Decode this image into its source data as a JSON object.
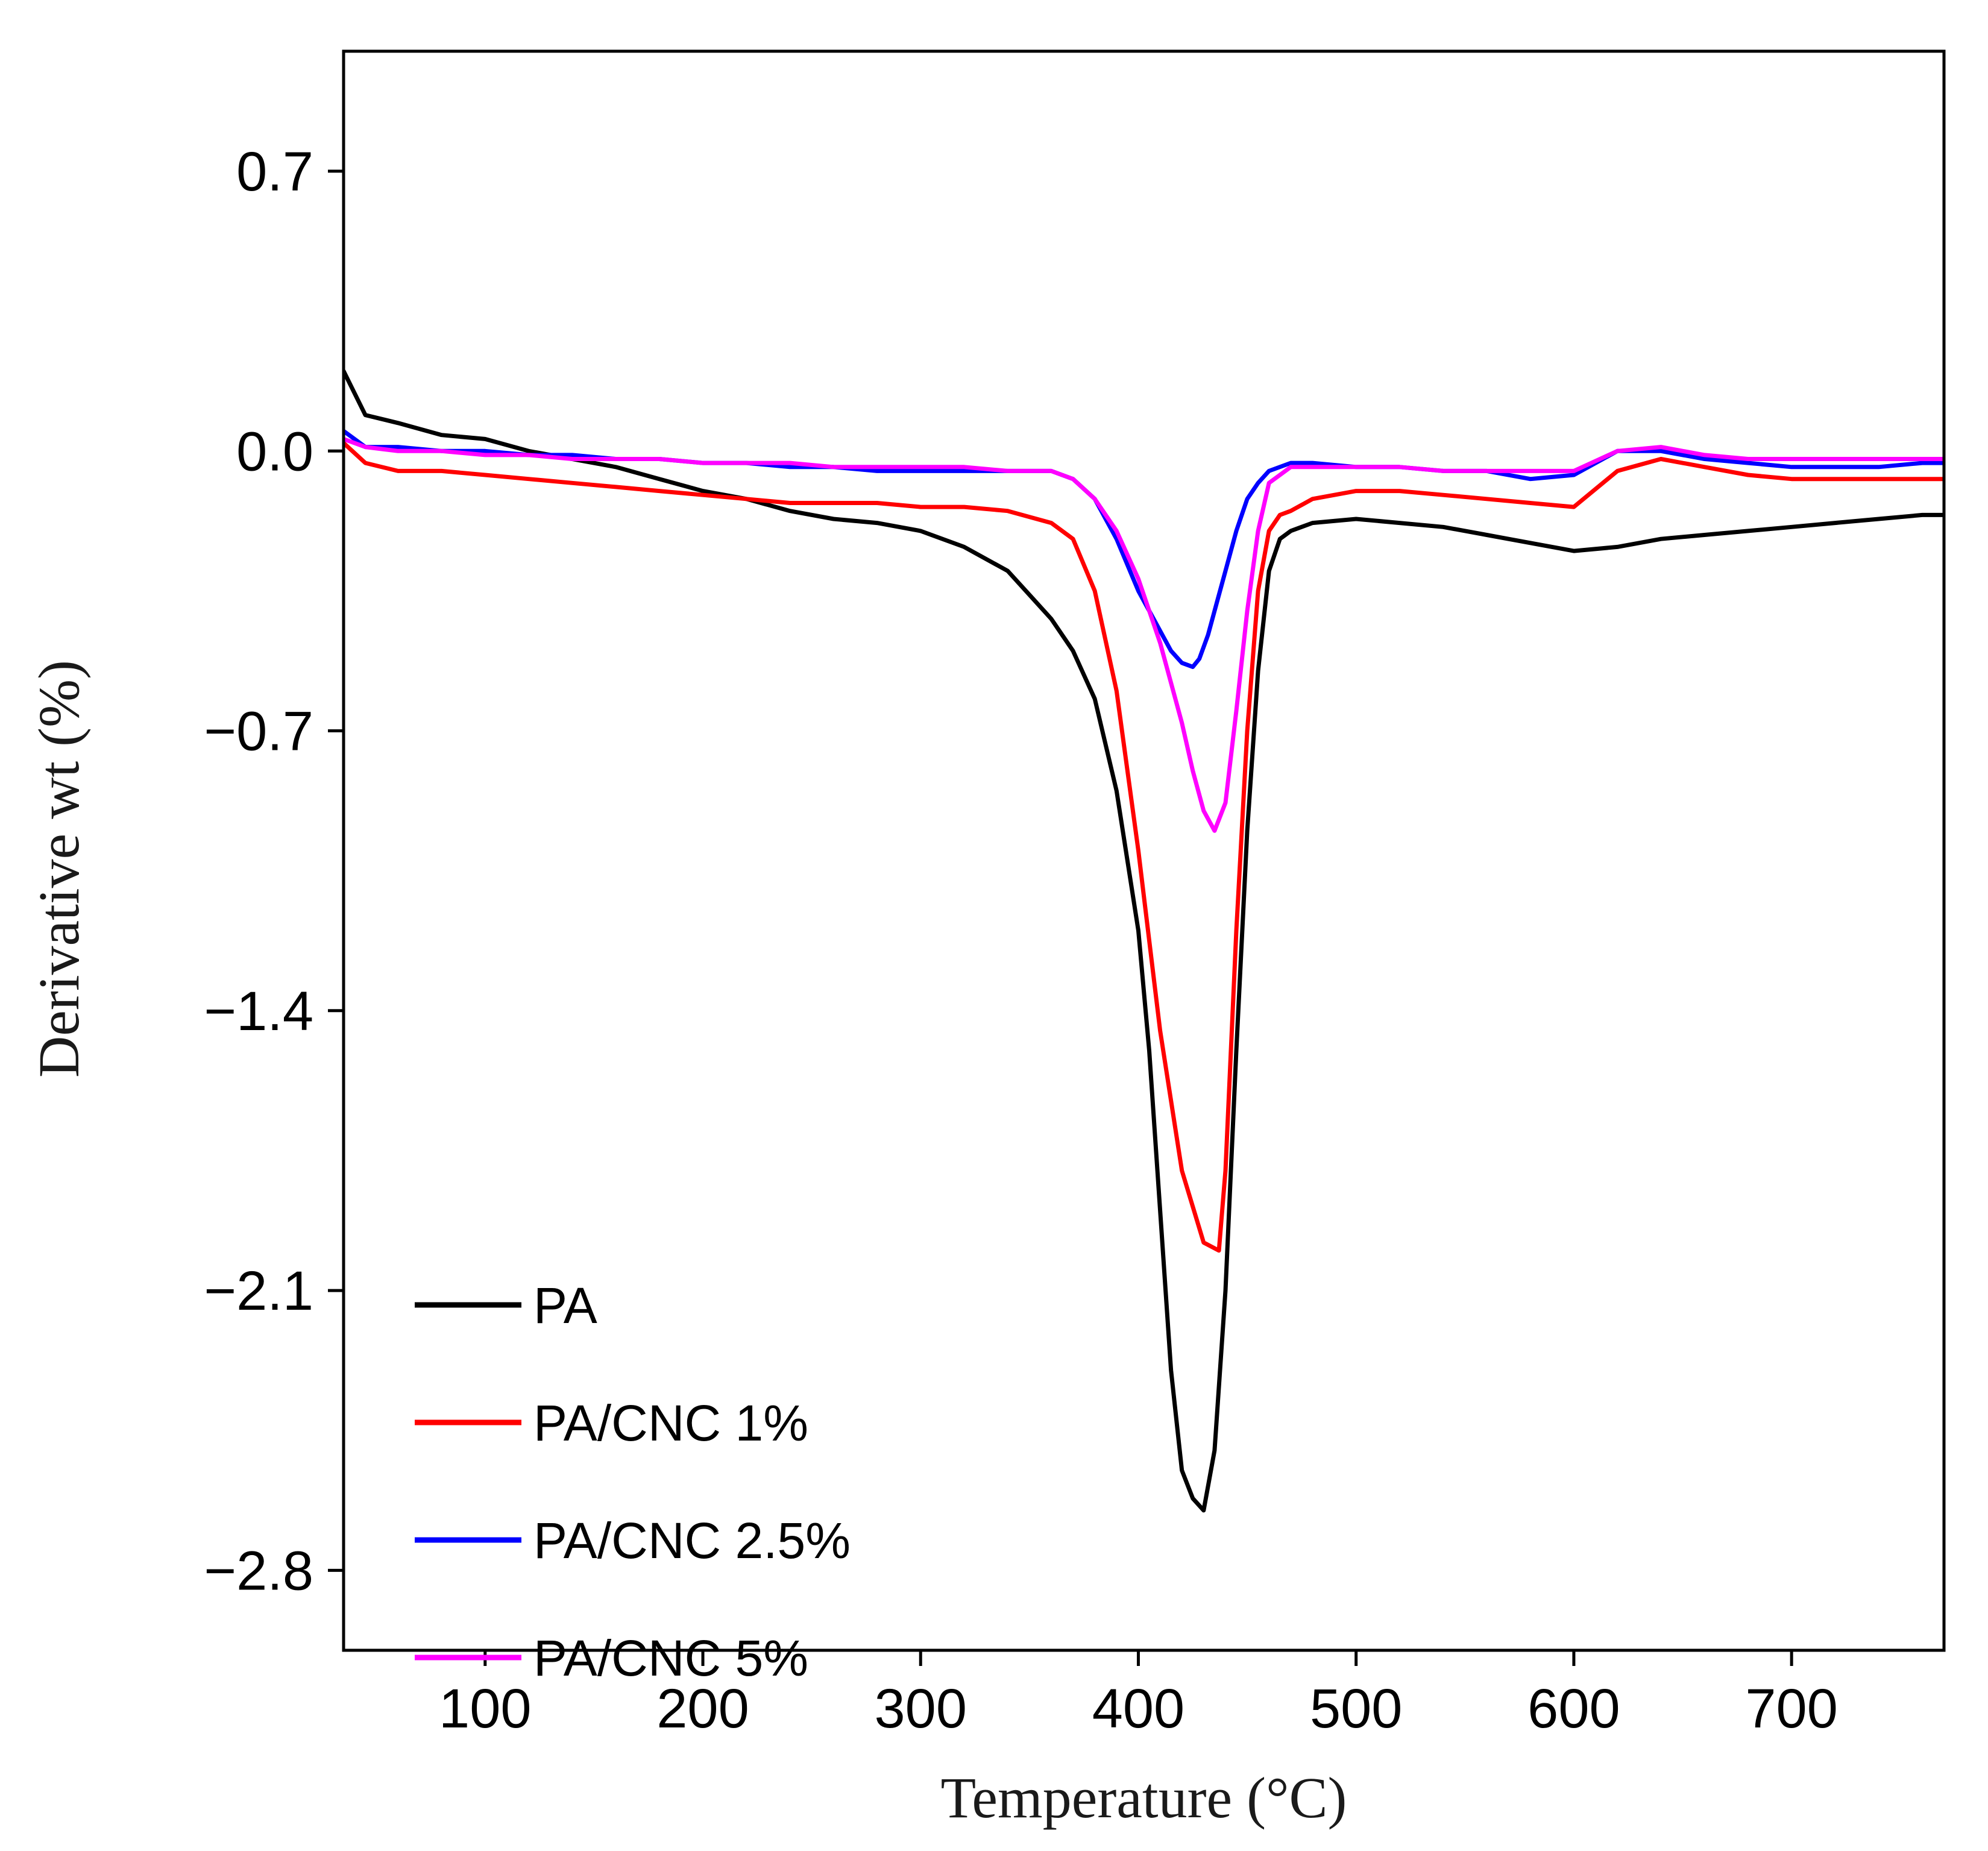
{
  "chart_data": {
    "type": "line",
    "title": "",
    "xlabel": "Temperature (°C)",
    "ylabel": "Derivative wt (%)",
    "xlim": [
      35,
      770
    ],
    "ylim": [
      -3.0,
      1.0
    ],
    "xticks": [
      100,
      200,
      300,
      400,
      500,
      600,
      700
    ],
    "xtick_labels": [
      "100",
      "200",
      "300",
      "400",
      "500",
      "600",
      "700"
    ],
    "yticks": [
      0.7,
      0.0,
      -0.7,
      -1.4,
      -2.1,
      -2.8
    ],
    "ytick_labels": [
      "0.7",
      "0.0",
      "−0.7",
      "−1.4",
      "−2.1",
      "−2.8"
    ],
    "legend_position": "bottom-left",
    "grid": false,
    "series": [
      {
        "name": "PA",
        "color": "#000000",
        "x": [
          35,
          45,
          60,
          80,
          100,
          120,
          140,
          160,
          180,
          200,
          220,
          240,
          260,
          280,
          300,
          320,
          340,
          350,
          360,
          370,
          380,
          390,
          400,
          405,
          410,
          415,
          420,
          425,
          430,
          435,
          440,
          445,
          450,
          455,
          460,
          465,
          470,
          480,
          500,
          520,
          540,
          560,
          580,
          600,
          620,
          640,
          660,
          680,
          700,
          720,
          740,
          760,
          770
        ],
        "y": [
          0.2,
          0.09,
          0.07,
          0.04,
          0.03,
          0.0,
          -0.02,
          -0.04,
          -0.07,
          -0.1,
          -0.12,
          -0.15,
          -0.17,
          -0.18,
          -0.2,
          -0.24,
          -0.3,
          -0.36,
          -0.42,
          -0.5,
          -0.62,
          -0.85,
          -1.2,
          -1.5,
          -1.9,
          -2.3,
          -2.55,
          -2.62,
          -2.65,
          -2.5,
          -2.1,
          -1.5,
          -0.95,
          -0.55,
          -0.3,
          -0.22,
          -0.2,
          -0.18,
          -0.17,
          -0.18,
          -0.19,
          -0.21,
          -0.23,
          -0.25,
          -0.24,
          -0.22,
          -0.21,
          -0.2,
          -0.19,
          -0.18,
          -0.17,
          -0.16,
          -0.16
        ]
      },
      {
        "name": "PA/CNC 1%",
        "color": "#ff0000",
        "x": [
          35,
          45,
          60,
          80,
          100,
          120,
          140,
          160,
          180,
          200,
          220,
          240,
          260,
          280,
          300,
          320,
          340,
          360,
          370,
          380,
          390,
          400,
          410,
          420,
          430,
          437,
          440,
          445,
          450,
          455,
          460,
          465,
          470,
          480,
          500,
          520,
          540,
          560,
          580,
          600,
          620,
          640,
          660,
          680,
          700,
          720,
          740,
          760,
          770
        ],
        "y": [
          0.02,
          -0.03,
          -0.05,
          -0.05,
          -0.06,
          -0.07,
          -0.08,
          -0.09,
          -0.1,
          -0.11,
          -0.12,
          -0.13,
          -0.13,
          -0.13,
          -0.14,
          -0.14,
          -0.15,
          -0.18,
          -0.22,
          -0.35,
          -0.6,
          -1.0,
          -1.45,
          -1.8,
          -1.98,
          -2.0,
          -1.8,
          -1.2,
          -0.7,
          -0.35,
          -0.2,
          -0.16,
          -0.15,
          -0.12,
          -0.1,
          -0.1,
          -0.11,
          -0.12,
          -0.13,
          -0.14,
          -0.05,
          -0.02,
          -0.04,
          -0.06,
          -0.07,
          -0.07,
          -0.07,
          -0.07,
          -0.07
        ]
      },
      {
        "name": "PA/CNC 2.5%",
        "color": "#0000ff",
        "x": [
          35,
          45,
          60,
          80,
          100,
          120,
          140,
          160,
          180,
          200,
          220,
          240,
          260,
          280,
          300,
          320,
          340,
          360,
          370,
          380,
          390,
          400,
          410,
          415,
          420,
          425,
          428,
          432,
          436,
          440,
          445,
          450,
          455,
          460,
          470,
          480,
          500,
          520,
          540,
          560,
          580,
          600,
          620,
          640,
          660,
          680,
          700,
          720,
          740,
          760,
          770
        ],
        "y": [
          0.05,
          0.01,
          0.01,
          0.0,
          0.0,
          -0.01,
          -0.01,
          -0.02,
          -0.02,
          -0.03,
          -0.03,
          -0.04,
          -0.04,
          -0.05,
          -0.05,
          -0.05,
          -0.05,
          -0.05,
          -0.07,
          -0.12,
          -0.22,
          -0.35,
          -0.45,
          -0.5,
          -0.53,
          -0.54,
          -0.52,
          -0.46,
          -0.38,
          -0.3,
          -0.2,
          -0.12,
          -0.08,
          -0.05,
          -0.03,
          -0.03,
          -0.04,
          -0.04,
          -0.05,
          -0.05,
          -0.07,
          -0.06,
          0.0,
          0.0,
          -0.02,
          -0.03,
          -0.04,
          -0.04,
          -0.04,
          -0.03,
          -0.03
        ]
      },
      {
        "name": "PA/CNC 5%",
        "color": "#ff00ff",
        "x": [
          35,
          45,
          60,
          80,
          100,
          120,
          140,
          160,
          180,
          200,
          220,
          240,
          260,
          280,
          300,
          320,
          340,
          360,
          370,
          380,
          390,
          400,
          410,
          420,
          425,
          430,
          435,
          440,
          445,
          450,
          455,
          460,
          470,
          480,
          500,
          520,
          540,
          560,
          580,
          600,
          620,
          640,
          660,
          680,
          700,
          720,
          740,
          760,
          770
        ],
        "y": [
          0.03,
          0.01,
          0.0,
          0.0,
          -0.01,
          -0.01,
          -0.02,
          -0.02,
          -0.02,
          -0.03,
          -0.03,
          -0.03,
          -0.04,
          -0.04,
          -0.04,
          -0.04,
          -0.05,
          -0.05,
          -0.07,
          -0.12,
          -0.2,
          -0.32,
          -0.48,
          -0.68,
          -0.8,
          -0.9,
          -0.95,
          -0.88,
          -0.65,
          -0.4,
          -0.2,
          -0.08,
          -0.04,
          -0.04,
          -0.04,
          -0.04,
          -0.05,
          -0.05,
          -0.05,
          -0.05,
          0.0,
          0.01,
          -0.01,
          -0.02,
          -0.02,
          -0.02,
          -0.02,
          -0.02,
          -0.02
        ]
      }
    ]
  }
}
